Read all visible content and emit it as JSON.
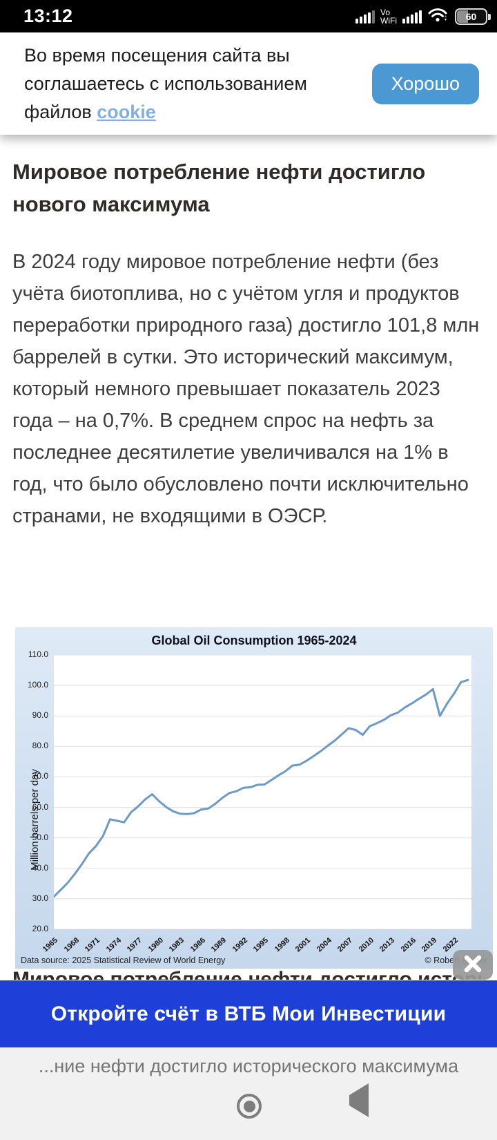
{
  "status_bar": {
    "time": "13:12",
    "vowifi_line1": "Vo",
    "vowifi_line2": "WiFi",
    "battery": "60"
  },
  "cookie_banner": {
    "text_before_link": "Во время посещения сайта вы соглашаетесь с использованием файлов ",
    "link": "cookie",
    "button": "Хорошо"
  },
  "article": {
    "title": "Мировое потребление нефти достигло нового максимума",
    "paragraph": "В 2024 году мировое потребление нефти (без учёта биотоплива, но с учётом угля и продуктов переработки природного газа) достигло 101,8 млн баррелей в сутки. Это исторический максимум, который немного превышает показатель 2023 года – на 0,7%. В среднем спрос на нефть за последнее десятилетие увеличивался на 1% в год, что было обусловлено почти исключительно странами, не входящими в ОЭСР.",
    "clipped_heading": "Мировое потребление нефти достигло исторического максимума"
  },
  "chart_data": {
    "type": "line",
    "title": "Global Oil Consumption 1965-2024",
    "ylabel": "Million barrels per day",
    "source_left": "Data source: 2025 Statistical Review of World Energy",
    "source_right": "© Robert Rapier",
    "line_color": "#6b9ac9",
    "grid_color": "#e4e4e6",
    "ylim": [
      20,
      110
    ],
    "y_ticks": [
      110,
      100,
      90,
      80,
      70,
      60,
      50,
      40,
      30,
      20
    ],
    "x_ticks": [
      1965,
      1968,
      1971,
      1974,
      1977,
      1980,
      1983,
      1986,
      1989,
      1992,
      1995,
      1998,
      2001,
      2004,
      2007,
      2010,
      2013,
      2016,
      2019,
      2022
    ],
    "x": [
      1965,
      1966,
      1967,
      1968,
      1969,
      1970,
      1971,
      1972,
      1973,
      1974,
      1975,
      1976,
      1977,
      1978,
      1979,
      1980,
      1981,
      1982,
      1983,
      1984,
      1985,
      1986,
      1987,
      1988,
      1989,
      1990,
      1991,
      1992,
      1993,
      1994,
      1995,
      1996,
      1997,
      1998,
      1999,
      2000,
      2001,
      2002,
      2003,
      2004,
      2005,
      2006,
      2007,
      2008,
      2009,
      2010,
      2011,
      2012,
      2013,
      2014,
      2015,
      2016,
      2017,
      2018,
      2019,
      2020,
      2021,
      2022,
      2023,
      2024
    ],
    "values": [
      30.7,
      33.0,
      35.3,
      38.2,
      41.4,
      44.9,
      47.3,
      50.6,
      56.1,
      55.6,
      55.1,
      58.4,
      60.3,
      62.6,
      64.3,
      62.0,
      60.1,
      58.7,
      57.9,
      57.8,
      58.1,
      59.3,
      59.6,
      61.2,
      63.1,
      64.7,
      65.3,
      66.4,
      66.6,
      67.4,
      67.5,
      69.0,
      70.5,
      71.9,
      73.7,
      74.0,
      75.3,
      76.8,
      78.4,
      80.2,
      81.9,
      83.9,
      86.0,
      85.4,
      83.8,
      86.6,
      87.6,
      88.7,
      90.2,
      91.1,
      92.8,
      94.1,
      95.6,
      97.0,
      98.8,
      90.0,
      94.0,
      97.3,
      101.1,
      101.8
    ]
  },
  "ad_banner": {
    "label": "Откройте счёт в ВТБ Мои Инвестиции"
  },
  "bottom_bar": {
    "truncated_title": "...ние нефти достигло исторического максимума"
  },
  "colors": {
    "accent_blue": "#4b98d3",
    "ad_blue": "#1e40d9",
    "line_blue": "#6b9ac9"
  }
}
